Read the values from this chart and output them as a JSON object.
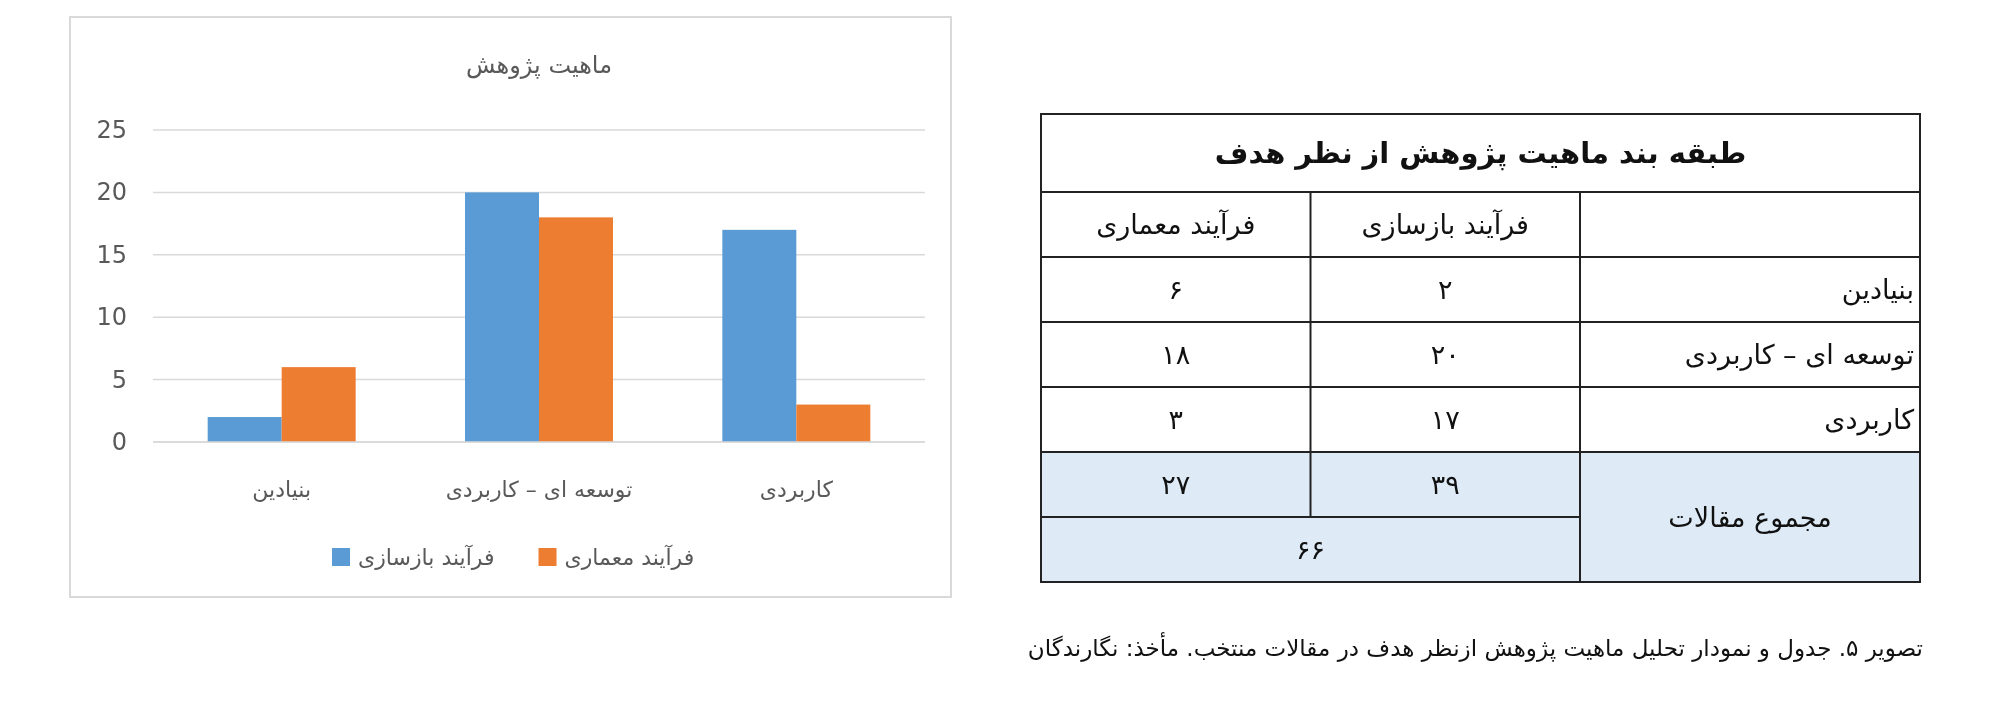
{
  "chart_data": [
    {
      "type": "bar",
      "title": "ماهیت پژوهش",
      "categories": [
        "بنیادین",
        "توسعه ای – کاربردی",
        "کاربردی"
      ],
      "series": [
        {
          "name": "فرآیند بازسازی",
          "color": "#5b9bd5",
          "values": [
            2,
            20,
            17
          ]
        },
        {
          "name": "فرآیند معماری",
          "color": "#ed7d31",
          "values": [
            6,
            18,
            3
          ]
        }
      ],
      "ylim": [
        0,
        25
      ],
      "yticks": [
        0,
        5,
        10,
        15,
        20,
        25
      ],
      "grid": "y",
      "legend": "bottom",
      "annotations": [
        "تصویر ۵. جدول و نمودار تحلیل ماهیت پژوهش ازنظر هدف در مقالات منتخب. مأخذ: نگارندگان"
      ]
    },
    {
      "type": "other",
      "title": "طبقه بند ماهیت پژوهش از نظر هدف",
      "categories": [
        "فرآیند بازسازی",
        "فرآیند معماری"
      ],
      "y_categories": [
        "بنیادین",
        "توسعه ای – کاربردی",
        "کاربردی",
        "مجموع مقالات"
      ],
      "cell_labels": [
        [
          "۲",
          "۶"
        ],
        [
          "۲۰",
          "۱۸"
        ],
        [
          "۱۷",
          "۳"
        ],
        [
          "۳۹",
          "۲۷"
        ]
      ],
      "annotations": [
        "۶۶"
      ]
    }
  ]
}
